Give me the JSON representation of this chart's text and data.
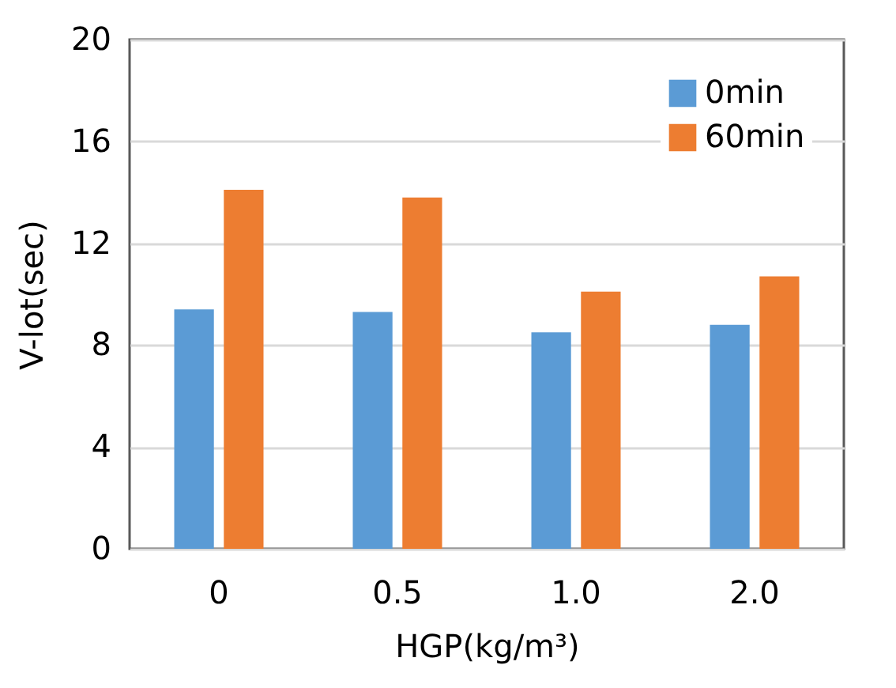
{
  "chart_data": {
    "type": "bar",
    "xlabel": "HGP(kg/m³)",
    "ylabel": "V-lot(sec)",
    "categories": [
      "0",
      "0.5",
      "1.0",
      "2.0"
    ],
    "series": [
      {
        "name": "0min",
        "color": "#5b9bd5",
        "values": [
          9.4,
          9.3,
          8.5,
          8.8
        ]
      },
      {
        "name": "60min",
        "color": "#ed7d31",
        "values": [
          14.1,
          13.8,
          10.1,
          10.7
        ]
      }
    ],
    "ylim": [
      0,
      20
    ],
    "yticks": [
      0,
      4,
      8,
      12,
      16,
      20
    ],
    "grid": "y",
    "legend": "top right"
  }
}
